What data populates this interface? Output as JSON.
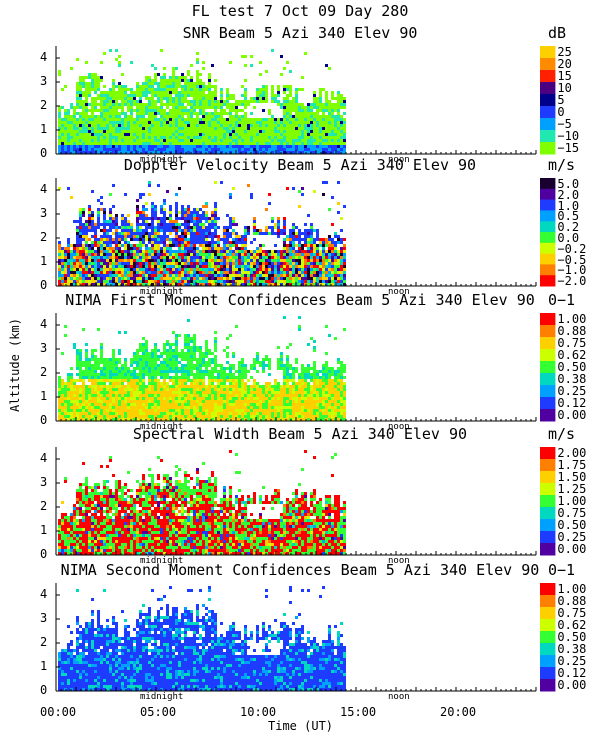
{
  "title": "FL test   7 Oct 09 Day 280",
  "xlabel": "Time (UT)",
  "ylabel": "Altitude (km)",
  "midnight_label": "midnight",
  "noon_label": "noon",
  "x_ticks": [
    "00:00",
    "05:00",
    "10:00",
    "15:00",
    "20:00"
  ],
  "y_ticks": [
    "0",
    "1",
    "2",
    "3",
    "4"
  ],
  "panels": [
    {
      "title": "SNR Beam 5 Azi 340 Elev 90",
      "unit": "dB",
      "colorbar": [
        "25",
        "20",
        "15",
        "10",
        "5",
        "0",
        "−5",
        "−10",
        "−15"
      ],
      "colors": [
        "#ffd000",
        "#ff8c00",
        "#ff2000",
        "#4b0082",
        "#00008b",
        "#1e3cff",
        "#00a0ff",
        "#20e8b0",
        "#7fff00"
      ]
    },
    {
      "title": "Doppler Velocity Beam 5 Azi 340 Elev 90",
      "unit": "m/s",
      "colorbar": [
        "5.0",
        "2.0",
        "1.0",
        "0.5",
        "0.2",
        "0.0",
        "−0.2",
        "−0.5",
        "−1.0",
        "−2.0"
      ],
      "colors": [
        "#1a0030",
        "#5000a0",
        "#1e3cff",
        "#00a0ff",
        "#00d8c0",
        "#33ff33",
        "#ccff00",
        "#ffd000",
        "#ff8000",
        "#ff0000"
      ]
    },
    {
      "title": "NIMA First Moment Confidences Beam 5 Azi 340 Elev 90",
      "unit": "0−1",
      "colorbar": [
        "1.00",
        "0.88",
        "0.75",
        "0.62",
        "0.50",
        "0.38",
        "0.25",
        "0.12",
        "0.00"
      ],
      "colors": [
        "#ff0000",
        "#ff8000",
        "#ffd000",
        "#ccff00",
        "#33ff33",
        "#00d8c0",
        "#00a0ff",
        "#1e3cff",
        "#5000a0"
      ]
    },
    {
      "title": "Spectral Width Beam 5 Azi 340 Elev 90",
      "unit": "m/s",
      "colorbar": [
        "2.00",
        "1.75",
        "1.50",
        "1.25",
        "1.00",
        "0.75",
        "0.50",
        "0.25",
        "0.00"
      ],
      "colors": [
        "#ff0000",
        "#ff8000",
        "#ffd000",
        "#ccff00",
        "#33ff33",
        "#00d8c0",
        "#00a0ff",
        "#1e3cff",
        "#5000a0"
      ]
    },
    {
      "title": "NIMA Second Moment Confidences Beam 5 Azi 340 Elev 90",
      "unit": "0−1",
      "colorbar": [
        "1.00",
        "0.88",
        "0.75",
        "0.62",
        "0.50",
        "0.38",
        "0.25",
        "0.12",
        "0.00"
      ],
      "colors": [
        "#ff0000",
        "#ff8000",
        "#ffd000",
        "#ccff00",
        "#33ff33",
        "#00d8c0",
        "#00a0ff",
        "#1e3cff",
        "#5000a0"
      ]
    }
  ],
  "chart_data": {
    "type": "heatmap",
    "x_unit": "Time (UT)",
    "xlim": [
      "00:00",
      "24:00"
    ],
    "ylim": [
      0,
      4.5
    ],
    "data_time_range": [
      "00:00",
      "14:30"
    ],
    "grid": false
  }
}
